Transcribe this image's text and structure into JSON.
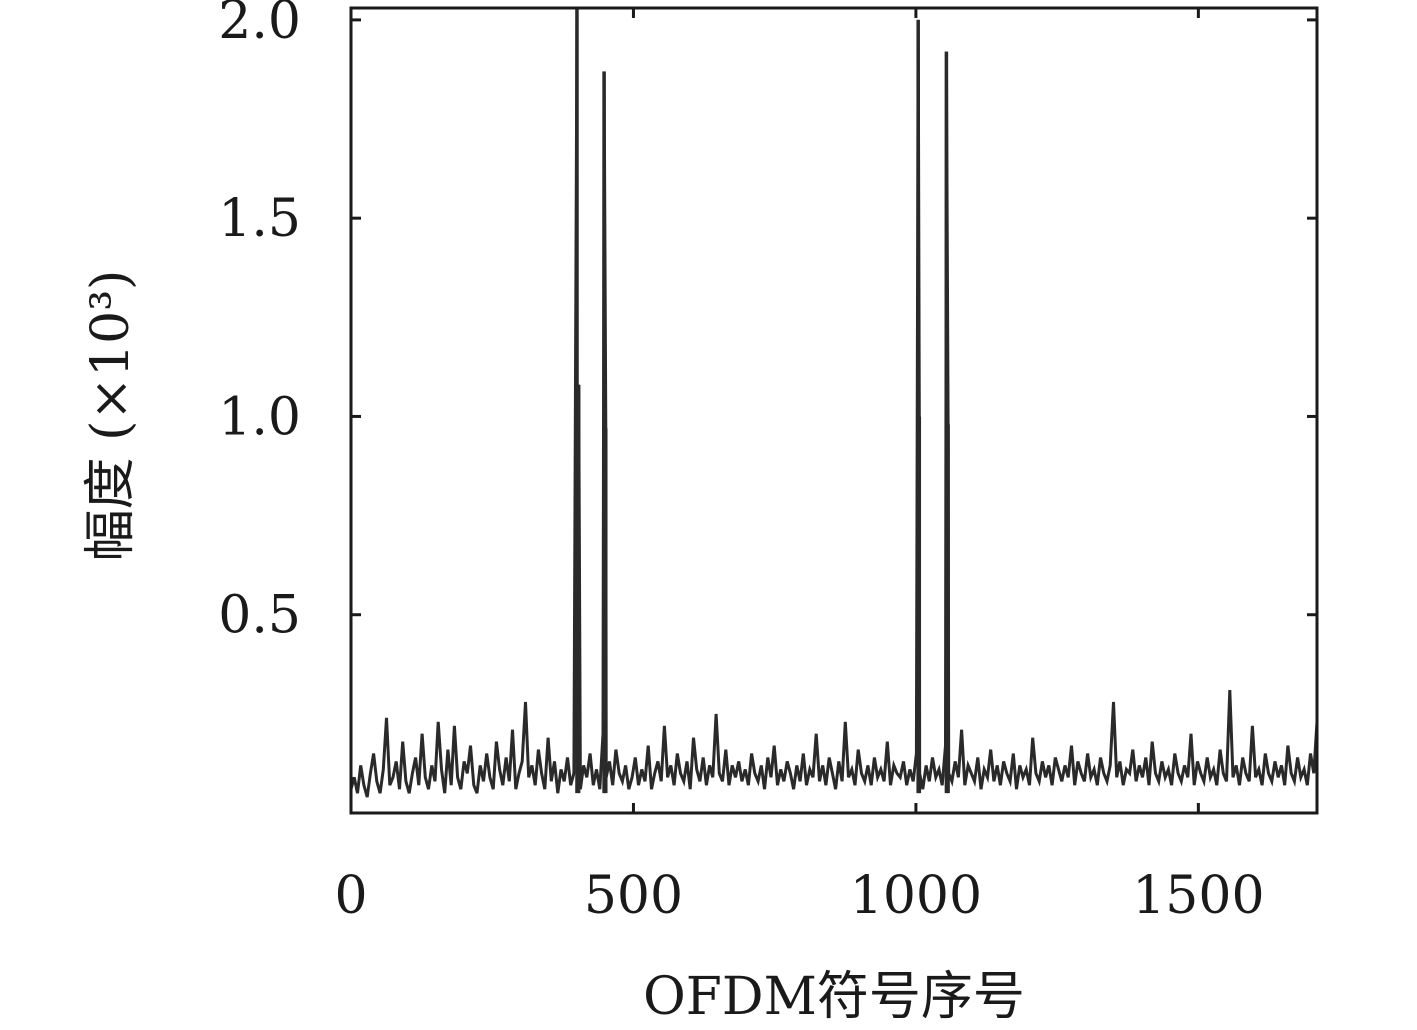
{
  "chart_data": {
    "type": "line",
    "title": "",
    "xlabel": "OFDM符号序号",
    "ylabel": "幅度 (×10³)",
    "xlim": [
      0,
      1710
    ],
    "ylim": [
      0.0,
      2.03
    ],
    "x_ticks": [
      {
        "value": 0,
        "label": "0"
      },
      {
        "value": 500,
        "label": "500"
      },
      {
        "value": 1000,
        "label": "1000"
      },
      {
        "value": 1500,
        "label": "1500"
      }
    ],
    "y_ticks": [
      {
        "value": 0.5,
        "label": "0.5"
      },
      {
        "value": 1.0,
        "label": "1.0"
      },
      {
        "value": 1.5,
        "label": "1.5"
      },
      {
        "value": 2.0,
        "label": "2.0"
      }
    ],
    "grid": false,
    "series": [
      {
        "color": "#2a2a2a",
        "noise_floor_range": [
          0.02,
          0.31
        ],
        "peaks": [
          {
            "x": 400,
            "y": 2.03
          },
          {
            "x": 403,
            "y": 1.08
          },
          {
            "x": 448,
            "y": 1.87
          },
          {
            "x": 451,
            "y": 0.97
          },
          {
            "x": 1004,
            "y": 2.0
          },
          {
            "x": 1006,
            "y": 1.0
          },
          {
            "x": 1054,
            "y": 1.92
          },
          {
            "x": 1057,
            "y": 0.98
          }
        ],
        "values": [
          0.06,
          0.09,
          0.05,
          0.12,
          0.07,
          0.04,
          0.1,
          0.15,
          0.08,
          0.05,
          0.11,
          0.24,
          0.07,
          0.09,
          0.13,
          0.06,
          0.18,
          0.08,
          0.05,
          0.1,
          0.14,
          0.07,
          0.2,
          0.09,
          0.06,
          0.12,
          0.08,
          0.23,
          0.11,
          0.05,
          0.16,
          0.07,
          0.22,
          0.09,
          0.06,
          0.13,
          0.1,
          0.17,
          0.07,
          0.05,
          0.12,
          0.08,
          0.15,
          0.09,
          0.06,
          0.18,
          0.11,
          0.07,
          0.14,
          0.08,
          0.21,
          0.06,
          0.1,
          0.13,
          0.28,
          0.09,
          0.12,
          0.07,
          0.16,
          0.1,
          0.06,
          0.19,
          0.08,
          0.13,
          0.05,
          0.11,
          0.08,
          0.14,
          0.07,
          0.1,
          0.18,
          0.06,
          0.12,
          0.09,
          0.15,
          0.07,
          0.11,
          0.06,
          0.2,
          0.09,
          0.13,
          0.07,
          0.16,
          0.1,
          0.08,
          0.12,
          0.06,
          0.09,
          0.14,
          0.07,
          0.11,
          0.08,
          0.17,
          0.06,
          0.1,
          0.13,
          0.08,
          0.22,
          0.09,
          0.12,
          0.07,
          0.15,
          0.1,
          0.08,
          0.13,
          0.06,
          0.19,
          0.11,
          0.08,
          0.14,
          0.07,
          0.12,
          0.09,
          0.25,
          0.1,
          0.08,
          0.16,
          0.07,
          0.12,
          0.09,
          0.13,
          0.08,
          0.11,
          0.07,
          0.15,
          0.1,
          0.08,
          0.12,
          0.06,
          0.14,
          0.09,
          0.17,
          0.07,
          0.11,
          0.08,
          0.13,
          0.1,
          0.06,
          0.12,
          0.08,
          0.15,
          0.07,
          0.11,
          0.09,
          0.2,
          0.08,
          0.12,
          0.07,
          0.14,
          0.1,
          0.06,
          0.13,
          0.08,
          0.23,
          0.09,
          0.11,
          0.07,
          0.16,
          0.1,
          0.08,
          0.12,
          0.07,
          0.14,
          0.09,
          0.11,
          0.08,
          0.18,
          0.07,
          0.12,
          0.1,
          0.09,
          0.13,
          0.07,
          0.11,
          0.08,
          0.15,
          0.1,
          0.06,
          0.12,
          0.08,
          0.14,
          0.09,
          0.11,
          0.07,
          0.17,
          0.1,
          0.08,
          0.13,
          0.09,
          0.21,
          0.07,
          0.12,
          0.1,
          0.08,
          0.14,
          0.06,
          0.11,
          0.09,
          0.16,
          0.08,
          0.12,
          0.07,
          0.13,
          0.1,
          0.08,
          0.15,
          0.06,
          0.12,
          0.09,
          0.11,
          0.07,
          0.19,
          0.1,
          0.08,
          0.13,
          0.09,
          0.12,
          0.07,
          0.14,
          0.11,
          0.08,
          0.12,
          0.09,
          0.17,
          0.07,
          0.13,
          0.1,
          0.08,
          0.15,
          0.09,
          0.11,
          0.07,
          0.14,
          0.1,
          0.08,
          0.12,
          0.28,
          0.09,
          0.13,
          0.07,
          0.11,
          0.1,
          0.16,
          0.08,
          0.12,
          0.09,
          0.14,
          0.07,
          0.18,
          0.1,
          0.08,
          0.13,
          0.09,
          0.11,
          0.07,
          0.15,
          0.1,
          0.08,
          0.12,
          0.09,
          0.2,
          0.07,
          0.13,
          0.1,
          0.08,
          0.14,
          0.09,
          0.11,
          0.07,
          0.16,
          0.1,
          0.08,
          0.31,
          0.09,
          0.12,
          0.07,
          0.14,
          0.1,
          0.08,
          0.22,
          0.09,
          0.11,
          0.07,
          0.15,
          0.1,
          0.08,
          0.13,
          0.09,
          0.12,
          0.07,
          0.17,
          0.1,
          0.08,
          0.14,
          0.09,
          0.11,
          0.07,
          0.15,
          0.1,
          0.23
        ]
      }
    ]
  }
}
